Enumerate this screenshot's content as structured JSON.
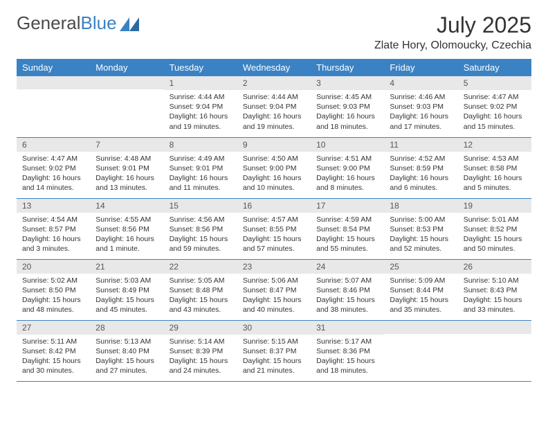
{
  "logo": {
    "text1": "General",
    "text2": "Blue"
  },
  "title": "July 2025",
  "location": "Zlate Hory, Olomoucky, Czechia",
  "header_bg": "#3a82c4",
  "day_headers": [
    "Sunday",
    "Monday",
    "Tuesday",
    "Wednesday",
    "Thursday",
    "Friday",
    "Saturday"
  ],
  "weeks": [
    [
      null,
      null,
      {
        "n": "1",
        "sr": "4:44 AM",
        "ss": "9:04 PM",
        "dl": "16 hours and 19 minutes."
      },
      {
        "n": "2",
        "sr": "4:44 AM",
        "ss": "9:04 PM",
        "dl": "16 hours and 19 minutes."
      },
      {
        "n": "3",
        "sr": "4:45 AM",
        "ss": "9:03 PM",
        "dl": "16 hours and 18 minutes."
      },
      {
        "n": "4",
        "sr": "4:46 AM",
        "ss": "9:03 PM",
        "dl": "16 hours and 17 minutes."
      },
      {
        "n": "5",
        "sr": "4:47 AM",
        "ss": "9:02 PM",
        "dl": "16 hours and 15 minutes."
      }
    ],
    [
      {
        "n": "6",
        "sr": "4:47 AM",
        "ss": "9:02 PM",
        "dl": "16 hours and 14 minutes."
      },
      {
        "n": "7",
        "sr": "4:48 AM",
        "ss": "9:01 PM",
        "dl": "16 hours and 13 minutes."
      },
      {
        "n": "8",
        "sr": "4:49 AM",
        "ss": "9:01 PM",
        "dl": "16 hours and 11 minutes."
      },
      {
        "n": "9",
        "sr": "4:50 AM",
        "ss": "9:00 PM",
        "dl": "16 hours and 10 minutes."
      },
      {
        "n": "10",
        "sr": "4:51 AM",
        "ss": "9:00 PM",
        "dl": "16 hours and 8 minutes."
      },
      {
        "n": "11",
        "sr": "4:52 AM",
        "ss": "8:59 PM",
        "dl": "16 hours and 6 minutes."
      },
      {
        "n": "12",
        "sr": "4:53 AM",
        "ss": "8:58 PM",
        "dl": "16 hours and 5 minutes."
      }
    ],
    [
      {
        "n": "13",
        "sr": "4:54 AM",
        "ss": "8:57 PM",
        "dl": "16 hours and 3 minutes."
      },
      {
        "n": "14",
        "sr": "4:55 AM",
        "ss": "8:56 PM",
        "dl": "16 hours and 1 minute."
      },
      {
        "n": "15",
        "sr": "4:56 AM",
        "ss": "8:56 PM",
        "dl": "15 hours and 59 minutes."
      },
      {
        "n": "16",
        "sr": "4:57 AM",
        "ss": "8:55 PM",
        "dl": "15 hours and 57 minutes."
      },
      {
        "n": "17",
        "sr": "4:59 AM",
        "ss": "8:54 PM",
        "dl": "15 hours and 55 minutes."
      },
      {
        "n": "18",
        "sr": "5:00 AM",
        "ss": "8:53 PM",
        "dl": "15 hours and 52 minutes."
      },
      {
        "n": "19",
        "sr": "5:01 AM",
        "ss": "8:52 PM",
        "dl": "15 hours and 50 minutes."
      }
    ],
    [
      {
        "n": "20",
        "sr": "5:02 AM",
        "ss": "8:50 PM",
        "dl": "15 hours and 48 minutes."
      },
      {
        "n": "21",
        "sr": "5:03 AM",
        "ss": "8:49 PM",
        "dl": "15 hours and 45 minutes."
      },
      {
        "n": "22",
        "sr": "5:05 AM",
        "ss": "8:48 PM",
        "dl": "15 hours and 43 minutes."
      },
      {
        "n": "23",
        "sr": "5:06 AM",
        "ss": "8:47 PM",
        "dl": "15 hours and 40 minutes."
      },
      {
        "n": "24",
        "sr": "5:07 AM",
        "ss": "8:46 PM",
        "dl": "15 hours and 38 minutes."
      },
      {
        "n": "25",
        "sr": "5:09 AM",
        "ss": "8:44 PM",
        "dl": "15 hours and 35 minutes."
      },
      {
        "n": "26",
        "sr": "5:10 AM",
        "ss": "8:43 PM",
        "dl": "15 hours and 33 minutes."
      }
    ],
    [
      {
        "n": "27",
        "sr": "5:11 AM",
        "ss": "8:42 PM",
        "dl": "15 hours and 30 minutes."
      },
      {
        "n": "28",
        "sr": "5:13 AM",
        "ss": "8:40 PM",
        "dl": "15 hours and 27 minutes."
      },
      {
        "n": "29",
        "sr": "5:14 AM",
        "ss": "8:39 PM",
        "dl": "15 hours and 24 minutes."
      },
      {
        "n": "30",
        "sr": "5:15 AM",
        "ss": "8:37 PM",
        "dl": "15 hours and 21 minutes."
      },
      {
        "n": "31",
        "sr": "5:17 AM",
        "ss": "8:36 PM",
        "dl": "15 hours and 18 minutes."
      },
      null,
      null
    ]
  ],
  "labels": {
    "sunrise": "Sunrise:",
    "sunset": "Sunset:",
    "daylight": "Daylight:"
  }
}
